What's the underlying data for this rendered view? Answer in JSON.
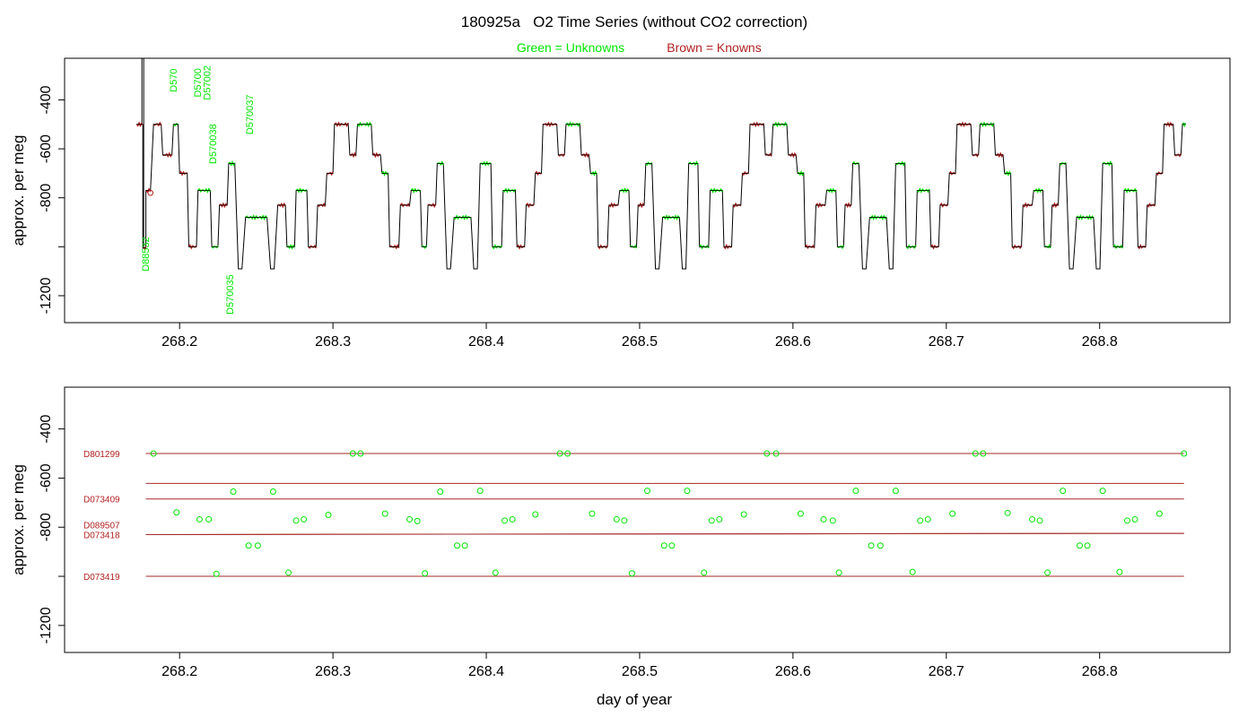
{
  "colors": {
    "unknowns": "#00e600",
    "knowns": "#b22222",
    "trace": "#000000",
    "ref_line": "#a52a2a"
  },
  "chart_data": {
    "type": "line",
    "title": "180925a   O2 Time Series (without CO2 correction)",
    "legend_unknowns": "Green = Unknowns",
    "legend_knowns": "Brown = Knowns",
    "xlabel": "day of year",
    "ylabel": "approx. per meg",
    "xlim": [
      268.125,
      268.885
    ],
    "ylim": [
      -1310,
      -230
    ],
    "y_reversed": true,
    "x_ticks": [
      268.2,
      268.3,
      268.4,
      268.5,
      268.6,
      268.7,
      268.8
    ],
    "x_tick_labels": [
      "268.2",
      "268.3",
      "268.4",
      "268.5",
      "268.6",
      "268.7",
      "268.8"
    ],
    "y_ticks": [
      -400,
      -800,
      -1200
    ],
    "y_tick_labels": [
      "-400",
      "-800",
      "-1200"
    ],
    "y_minor_ticks": [
      -600,
      -1000
    ],
    "y_minor_tick_labels": [
      "-600",
      ""
    ],
    "top_panel": {
      "trace_steps": [
        [
          268.172,
          268.176,
          -500,
          "k"
        ],
        [
          268.176,
          268.178,
          -1005,
          "k"
        ],
        [
          268.178,
          268.181,
          -770,
          "k"
        ],
        [
          268.183,
          268.188,
          -500,
          "k"
        ],
        [
          268.189,
          268.195,
          -625,
          "k"
        ],
        [
          268.196,
          268.199,
          -500,
          "u"
        ],
        [
          268.2,
          268.205,
          -700,
          "k"
        ],
        [
          268.206,
          268.211,
          -1000,
          "k"
        ],
        [
          268.212,
          268.22,
          -770,
          "u"
        ],
        [
          268.221,
          268.225,
          -1000,
          "u"
        ],
        [
          268.226,
          268.231,
          -830,
          "k"
        ],
        [
          268.232,
          268.236,
          -660,
          "u"
        ],
        [
          268.243,
          268.257,
          -880,
          "u"
        ],
        [
          268.264,
          268.269,
          -830,
          "k"
        ],
        [
          268.27,
          268.275,
          -1000,
          "u"
        ],
        [
          268.276,
          268.283,
          -770,
          "u"
        ],
        [
          268.284,
          268.289,
          -1000,
          "k"
        ],
        [
          268.29,
          268.295,
          -830,
          "k"
        ],
        [
          268.296,
          268.3,
          -700,
          "k"
        ],
        [
          268.301,
          268.31,
          -500,
          "k"
        ],
        [
          268.311,
          268.315,
          -625,
          "k"
        ],
        [
          268.316,
          268.325,
          -500,
          "u"
        ],
        [
          268.326,
          268.331,
          -625,
          "k"
        ],
        [
          268.332,
          268.336,
          -700,
          "u"
        ],
        [
          268.337,
          268.343,
          -1000,
          "k"
        ],
        [
          268.344,
          268.35,
          -830,
          "k"
        ],
        [
          268.351,
          268.357,
          -770,
          "u"
        ],
        [
          268.358,
          268.361,
          -1000,
          "u"
        ],
        [
          268.362,
          268.367,
          -830,
          "k"
        ],
        [
          268.368,
          268.372,
          -660,
          "u"
        ],
        [
          268.379,
          268.39,
          -880,
          "u"
        ],
        [
          268.396,
          268.403,
          -660,
          "u"
        ],
        [
          268.404,
          268.41,
          -1000,
          "u"
        ],
        [
          268.411,
          268.419,
          -770,
          "u"
        ],
        [
          268.42,
          268.425,
          -1000,
          "k"
        ],
        [
          268.426,
          268.431,
          -830,
          "k"
        ],
        [
          268.432,
          268.436,
          -700,
          "k"
        ],
        [
          268.437,
          268.446,
          -500,
          "k"
        ],
        [
          268.447,
          268.451,
          -625,
          "k"
        ],
        [
          268.452,
          268.461,
          -500,
          "u"
        ],
        [
          268.462,
          268.467,
          -625,
          "k"
        ],
        [
          268.468,
          268.472,
          -700,
          "u"
        ],
        [
          268.473,
          268.479,
          -1000,
          "k"
        ],
        [
          268.48,
          268.486,
          -830,
          "k"
        ],
        [
          268.487,
          268.493,
          -770,
          "u"
        ],
        [
          268.494,
          268.498,
          -1000,
          "u"
        ],
        [
          268.499,
          268.503,
          -830,
          "k"
        ],
        [
          268.504,
          268.508,
          -660,
          "u"
        ],
        [
          268.515,
          268.526,
          -880,
          "u"
        ],
        [
          268.532,
          268.538,
          -660,
          "u"
        ],
        [
          268.539,
          268.545,
          -1000,
          "u"
        ],
        [
          268.546,
          268.554,
          -770,
          "u"
        ],
        [
          268.555,
          268.56,
          -1000,
          "k"
        ],
        [
          268.561,
          268.566,
          -830,
          "k"
        ],
        [
          268.567,
          268.571,
          -700,
          "k"
        ],
        [
          268.572,
          268.581,
          -500,
          "k"
        ],
        [
          268.582,
          268.586,
          -625,
          "k"
        ],
        [
          268.587,
          268.596,
          -500,
          "u"
        ],
        [
          268.597,
          268.602,
          -625,
          "k"
        ],
        [
          268.603,
          268.607,
          -700,
          "u"
        ],
        [
          268.608,
          268.614,
          -1000,
          "k"
        ],
        [
          268.615,
          268.621,
          -830,
          "k"
        ],
        [
          268.622,
          268.628,
          -770,
          "u"
        ],
        [
          268.629,
          268.633,
          -1000,
          "u"
        ],
        [
          268.634,
          268.638,
          -830,
          "k"
        ],
        [
          268.639,
          268.643,
          -660,
          "u"
        ],
        [
          268.65,
          268.661,
          -880,
          "u"
        ],
        [
          268.667,
          268.673,
          -660,
          "u"
        ],
        [
          268.674,
          268.68,
          -1000,
          "u"
        ],
        [
          268.681,
          268.689,
          -770,
          "u"
        ],
        [
          268.69,
          268.695,
          -1000,
          "k"
        ],
        [
          268.696,
          268.701,
          -830,
          "k"
        ],
        [
          268.702,
          268.706,
          -700,
          "k"
        ],
        [
          268.707,
          268.716,
          -500,
          "k"
        ],
        [
          268.717,
          268.721,
          -625,
          "k"
        ],
        [
          268.722,
          268.731,
          -500,
          "u"
        ],
        [
          268.732,
          268.737,
          -625,
          "k"
        ],
        [
          268.738,
          268.742,
          -700,
          "u"
        ],
        [
          268.743,
          268.749,
          -1000,
          "k"
        ],
        [
          268.75,
          268.756,
          -830,
          "k"
        ],
        [
          268.757,
          268.763,
          -770,
          "u"
        ],
        [
          268.764,
          268.768,
          -1000,
          "u"
        ],
        [
          268.769,
          268.773,
          -830,
          "k"
        ],
        [
          268.774,
          268.778,
          -660,
          "u"
        ],
        [
          268.785,
          268.796,
          -880,
          "u"
        ],
        [
          268.802,
          268.808,
          -660,
          "u"
        ],
        [
          268.809,
          268.815,
          -1000,
          "u"
        ],
        [
          268.816,
          268.824,
          -770,
          "u"
        ],
        [
          268.825,
          268.83,
          -1000,
          "k"
        ],
        [
          268.831,
          268.836,
          -830,
          "k"
        ],
        [
          268.837,
          268.841,
          -700,
          "k"
        ],
        [
          268.842,
          268.848,
          -500,
          "k"
        ],
        [
          268.849,
          268.853,
          -625,
          "k"
        ],
        [
          268.854,
          268.856,
          -500,
          "u"
        ]
      ],
      "spikes": [
        268.176,
        268.238,
        268.26,
        268.375,
        268.392,
        268.51,
        268.528,
        268.645,
        268.663,
        268.78,
        268.798
      ],
      "open_marker": {
        "x": 268.181,
        "y": -780,
        "kind": "k"
      },
      "labels": [
        {
          "text": "D88532",
          "x": 268.18,
          "y": -1030
        },
        {
          "text": "D570",
          "x": 268.198,
          "y": -320
        },
        {
          "text": "D5700",
          "x": 268.214,
          "y": -330
        },
        {
          "text": "D57002",
          "x": 268.22,
          "y": -330
        },
        {
          "text": "D570038",
          "x": 268.224,
          "y": -580
        },
        {
          "text": "D570035",
          "x": 268.235,
          "y": -1195
        },
        {
          "text": "D570037",
          "x": 268.248,
          "y": -460
        }
      ]
    },
    "bottom_panel": {
      "ref_lines": [
        {
          "label": "D801299",
          "start": -500,
          "end": -500
        },
        {
          "label": "",
          "start": -622,
          "end": -622
        },
        {
          "label": "D073409",
          "start": -685,
          "end": -685
        },
        {
          "label": "D089507",
          "start": -830,
          "end": -825
        },
        {
          "label": "D073418",
          "start": -830,
          "end": -825
        },
        {
          "label": "D073419",
          "start": -1000,
          "end": -1000
        }
      ],
      "label_y": [
        -500,
        -685,
        -790,
        -830,
        -1000
      ],
      "x_start": 268.178,
      "x_end": 268.855,
      "points": [
        [
          268.183,
          -500
        ],
        [
          268.198,
          -740
        ],
        [
          268.213,
          -768
        ],
        [
          268.219,
          -768
        ],
        [
          268.224,
          -990
        ],
        [
          268.235,
          -655
        ],
        [
          268.245,
          -875
        ],
        [
          268.251,
          -875
        ],
        [
          268.261,
          -655
        ],
        [
          268.271,
          -985
        ],
        [
          268.276,
          -773
        ],
        [
          268.281,
          -768
        ],
        [
          268.297,
          -750
        ],
        [
          268.313,
          -500
        ],
        [
          268.318,
          -500
        ],
        [
          268.334,
          -745
        ],
        [
          268.35,
          -768
        ],
        [
          268.355,
          -775
        ],
        [
          268.36,
          -988
        ],
        [
          268.37,
          -655
        ],
        [
          268.381,
          -875
        ],
        [
          268.386,
          -875
        ],
        [
          268.396,
          -652
        ],
        [
          268.406,
          -985
        ],
        [
          268.412,
          -773
        ],
        [
          268.417,
          -768
        ],
        [
          268.432,
          -748
        ],
        [
          268.448,
          -500
        ],
        [
          268.453,
          -500
        ],
        [
          268.469,
          -745
        ],
        [
          268.485,
          -768
        ],
        [
          268.49,
          -773
        ],
        [
          268.495,
          -988
        ],
        [
          268.505,
          -652
        ],
        [
          268.516,
          -875
        ],
        [
          268.521,
          -875
        ],
        [
          268.531,
          -652
        ],
        [
          268.542,
          -985
        ],
        [
          268.547,
          -773
        ],
        [
          268.552,
          -768
        ],
        [
          268.568,
          -748
        ],
        [
          268.583,
          -500
        ],
        [
          268.589,
          -500
        ],
        [
          268.605,
          -745
        ],
        [
          268.62,
          -768
        ],
        [
          268.626,
          -773
        ],
        [
          268.63,
          -985
        ],
        [
          268.641,
          -652
        ],
        [
          268.651,
          -875
        ],
        [
          268.657,
          -875
        ],
        [
          268.667,
          -652
        ],
        [
          268.678,
          -982
        ],
        [
          268.683,
          -773
        ],
        [
          268.688,
          -768
        ],
        [
          268.704,
          -745
        ],
        [
          268.719,
          -500
        ],
        [
          268.724,
          -500
        ],
        [
          268.74,
          -742
        ],
        [
          268.756,
          -768
        ],
        [
          268.761,
          -773
        ],
        [
          268.766,
          -985
        ],
        [
          268.776,
          -652
        ],
        [
          268.787,
          -875
        ],
        [
          268.792,
          -875
        ],
        [
          268.802,
          -652
        ],
        [
          268.813,
          -982
        ],
        [
          268.818,
          -773
        ],
        [
          268.823,
          -768
        ],
        [
          268.839,
          -745
        ],
        [
          268.855,
          -500
        ]
      ]
    }
  }
}
